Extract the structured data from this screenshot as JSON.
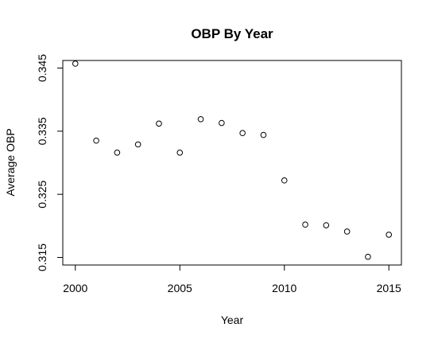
{
  "chart_data": {
    "type": "scatter",
    "title": "OBP By Year",
    "xlabel": "Year",
    "ylabel": "Average OBP",
    "x": [
      2000,
      2001,
      2002,
      2003,
      2004,
      2005,
      2006,
      2007,
      2008,
      2009,
      2010,
      2011,
      2012,
      2013,
      2014,
      2015
    ],
    "y": [
      0.3457,
      0.3335,
      0.3316,
      0.3329,
      0.3362,
      0.3316,
      0.3369,
      0.3363,
      0.3347,
      0.3344,
      0.3272,
      0.3202,
      0.3201,
      0.3191,
      0.3151,
      0.3186
    ],
    "xlim": [
      1999.4,
      2015.6
    ],
    "ylim": [
      0.3138,
      0.3462
    ],
    "x_ticks": [
      2000,
      2005,
      2010,
      2015
    ],
    "y_ticks": [
      0.315,
      0.325,
      0.335,
      0.345
    ],
    "x_tick_labels": [
      "2000",
      "2005",
      "2010",
      "2015"
    ],
    "y_tick_labels": [
      "0.315",
      "0.325",
      "0.335",
      "0.345"
    ],
    "marker": "open-circle",
    "grid": false,
    "legend": "none"
  }
}
